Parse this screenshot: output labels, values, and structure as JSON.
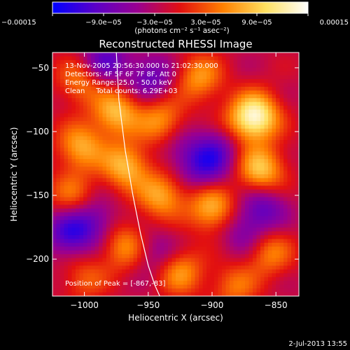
{
  "chart_data": {
    "type": "heatmap",
    "title": "Reconstructed RHESSI Image",
    "xlabel": "Heliocentric X (arcsec)",
    "ylabel": "Heliocentric Y (arcsec)",
    "xlim": [
      -1025,
      -832
    ],
    "ylim": [
      -229,
      -38
    ],
    "x_ticks": [
      -1000,
      -950,
      -900,
      -850
    ],
    "x_tick_labels": [
      "−1000",
      "−950",
      "−900",
      "−850"
    ],
    "y_ticks": [
      -50,
      -100,
      -150,
      -200
    ],
    "y_tick_labels": [
      "−50",
      "−100",
      "−150",
      "−200"
    ],
    "colorbar": {
      "range": [
        -0.00015,
        0.00015
      ],
      "ticks": [
        -0.00015,
        -9e-05,
        -3e-05,
        3e-05,
        9e-05,
        0.00015
      ],
      "tick_labels": [
        "−0.00015",
        "−9.0e−05",
        "−3.0e−05",
        "3.0e−05",
        "9.0e−05",
        "0.00015"
      ],
      "unit_label": "(photons cm⁻² s⁻¹ asec⁻²)",
      "colors": [
        "#0000ff",
        "#5a00c8",
        "#9a0090",
        "#e21010",
        "#ff8000",
        "#ffe060",
        "#ffffff"
      ]
    },
    "annotations": {
      "time": "13-Nov-2005 20:56:30.000 to 21:02:30.000",
      "detectors": "Detectors: 4F 5F 6F 7F 8F, Att 0",
      "energy": "Energy Range: 25.0 - 50.0 keV",
      "clean": "Clean     Total counts: 6.29E+03",
      "peak": "Position of Peak = [-867,-83]"
    },
    "peak_position": [
      -867,
      -83
    ],
    "limb_curve": {
      "x": [
        -975,
        -973,
        -968,
        -962,
        -956,
        -950,
        -945,
        -941
      ],
      "y": [
        -38,
        -75,
        -115,
        -150,
        -180,
        -205,
        -220,
        -229
      ]
    },
    "emission_sources": [
      {
        "x": -866,
        "y": -88,
        "value": 0.00015
      },
      {
        "x": -862,
        "y": -130,
        "value": 0.00011
      },
      {
        "x": -975,
        "y": -85,
        "value": 0.0001
      },
      {
        "x": -968,
        "y": -127,
        "value": 0.0001
      },
      {
        "x": -1003,
        "y": -112,
        "value": 9e-05
      },
      {
        "x": -940,
        "y": -92,
        "value": 8e-05
      },
      {
        "x": -940,
        "y": -150,
        "value": 9e-05
      },
      {
        "x": -900,
        "y": -160,
        "value": 0.0001
      },
      {
        "x": -910,
        "y": -58,
        "value": 8e-05
      },
      {
        "x": -1003,
        "y": -60,
        "value": 7e-05
      },
      {
        "x": -925,
        "y": -210,
        "value": 8e-05
      },
      {
        "x": -968,
        "y": -190,
        "value": 8e-05
      },
      {
        "x": -855,
        "y": -195,
        "value": 7e-05
      },
      {
        "x": -1010,
        "y": -150,
        "value": 6e-05
      },
      {
        "x": -885,
        "y": -100,
        "value": 6e-05
      },
      {
        "x": -882,
        "y": -222,
        "value": 6e-05
      },
      {
        "x": -1000,
        "y": -215,
        "value": 5e-05
      },
      {
        "x": -985,
        "y": -45,
        "value": -8e-05
      },
      {
        "x": -1012,
        "y": -180,
        "value": -9e-05
      },
      {
        "x": -948,
        "y": -58,
        "value": -7e-05
      },
      {
        "x": -905,
        "y": -128,
        "value": -8e-05
      },
      {
        "x": -892,
        "y": -108,
        "value": -8e-05
      },
      {
        "x": -860,
        "y": -160,
        "value": -7e-05
      },
      {
        "x": -992,
        "y": -170,
        "value": -6e-05
      },
      {
        "x": -945,
        "y": -195,
        "value": -5e-05
      },
      {
        "x": -875,
        "y": -180,
        "value": -5e-05
      },
      {
        "x": -925,
        "y": -115,
        "value": -4e-05
      }
    ]
  },
  "footer": {
    "timestamp": "2-Jul-2013 13:55"
  }
}
